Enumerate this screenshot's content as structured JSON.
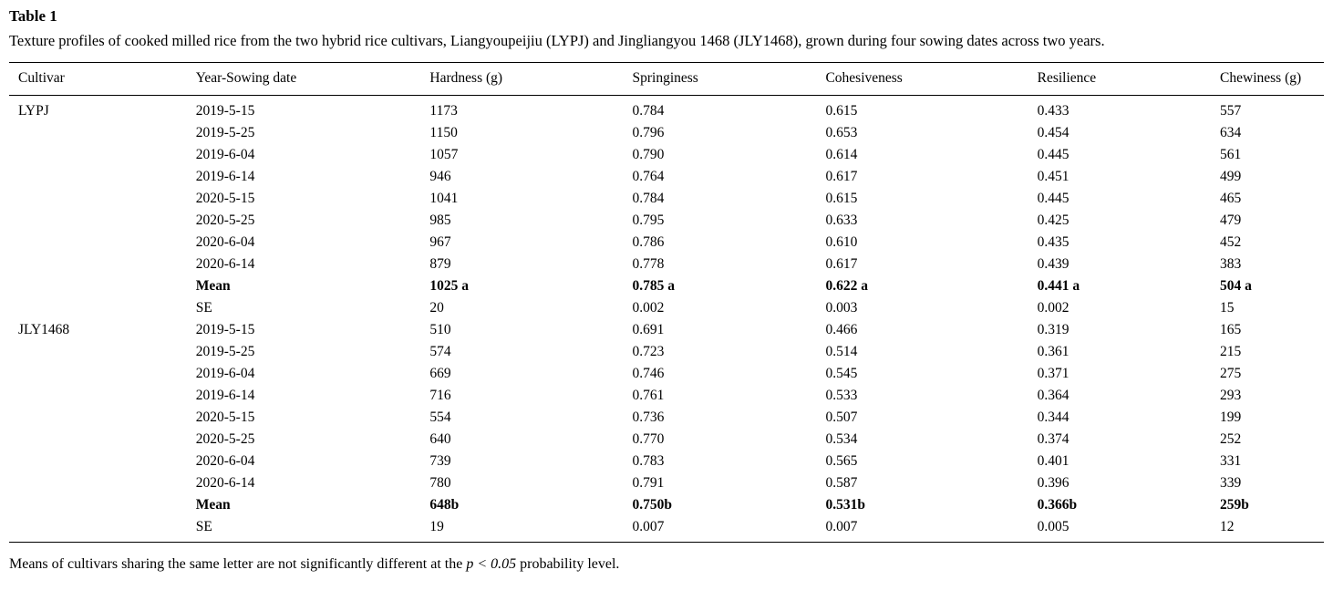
{
  "table": {
    "label": "Table 1",
    "caption": "Texture profiles of cooked milled rice from the two hybrid rice cultivars, Liangyoupeijiu (LYPJ) and Jingliangyou 1468 (JLY1468), grown during four sowing dates across two years.",
    "columns": [
      "Cultivar",
      "Year-Sowing date",
      "Hardness (g)",
      "Springiness",
      "Cohesiveness",
      "Resilience",
      "Chewiness (g)"
    ],
    "rows": [
      {
        "bold": false,
        "cells": [
          "LYPJ",
          "2019-5-15",
          "1173",
          "0.784",
          "0.615",
          "0.433",
          "557"
        ]
      },
      {
        "bold": false,
        "cells": [
          "",
          "2019-5-25",
          "1150",
          "0.796",
          "0.653",
          "0.454",
          "634"
        ]
      },
      {
        "bold": false,
        "cells": [
          "",
          "2019-6-04",
          "1057",
          "0.790",
          "0.614",
          "0.445",
          "561"
        ]
      },
      {
        "bold": false,
        "cells": [
          "",
          "2019-6-14",
          "946",
          "0.764",
          "0.617",
          "0.451",
          "499"
        ]
      },
      {
        "bold": false,
        "cells": [
          "",
          "2020-5-15",
          "1041",
          "0.784",
          "0.615",
          "0.445",
          "465"
        ]
      },
      {
        "bold": false,
        "cells": [
          "",
          "2020-5-25",
          "985",
          "0.795",
          "0.633",
          "0.425",
          "479"
        ]
      },
      {
        "bold": false,
        "cells": [
          "",
          "2020-6-04",
          "967",
          "0.786",
          "0.610",
          "0.435",
          "452"
        ]
      },
      {
        "bold": false,
        "cells": [
          "",
          "2020-6-14",
          "879",
          "0.778",
          "0.617",
          "0.439",
          "383"
        ]
      },
      {
        "bold": true,
        "cells": [
          "",
          "Mean",
          "1025 a",
          "0.785 a",
          "0.622 a",
          "0.441 a",
          "504 a"
        ]
      },
      {
        "bold": false,
        "cells": [
          "",
          "SE",
          "20",
          "0.002",
          "0.003",
          "0.002",
          "15"
        ]
      },
      {
        "bold": false,
        "cells": [
          "JLY1468",
          "2019-5-15",
          "510",
          "0.691",
          "0.466",
          "0.319",
          "165"
        ]
      },
      {
        "bold": false,
        "cells": [
          "",
          "2019-5-25",
          "574",
          "0.723",
          "0.514",
          "0.361",
          "215"
        ]
      },
      {
        "bold": false,
        "cells": [
          "",
          "2019-6-04",
          "669",
          "0.746",
          "0.545",
          "0.371",
          "275"
        ]
      },
      {
        "bold": false,
        "cells": [
          "",
          "2019-6-14",
          "716",
          "0.761",
          "0.533",
          "0.364",
          "293"
        ]
      },
      {
        "bold": false,
        "cells": [
          "",
          "2020-5-15",
          "554",
          "0.736",
          "0.507",
          "0.344",
          "199"
        ]
      },
      {
        "bold": false,
        "cells": [
          "",
          "2020-5-25",
          "640",
          "0.770",
          "0.534",
          "0.374",
          "252"
        ]
      },
      {
        "bold": false,
        "cells": [
          "",
          "2020-6-04",
          "739",
          "0.783",
          "0.565",
          "0.401",
          "331"
        ]
      },
      {
        "bold": false,
        "cells": [
          "",
          "2020-6-14",
          "780",
          "0.791",
          "0.587",
          "0.396",
          "339"
        ]
      },
      {
        "bold": true,
        "cells": [
          "",
          "Mean",
          "648b",
          "0.750b",
          "0.531b",
          "0.366b",
          "259b"
        ]
      },
      {
        "bold": false,
        "cells": [
          "",
          "SE",
          "19",
          "0.007",
          "0.007",
          "0.005",
          "12"
        ]
      }
    ],
    "footnote": {
      "prefix": "Means of cultivars sharing the same letter are not significantly different at the ",
      "italic": "p < 0.05",
      "suffix": " probability level."
    }
  }
}
